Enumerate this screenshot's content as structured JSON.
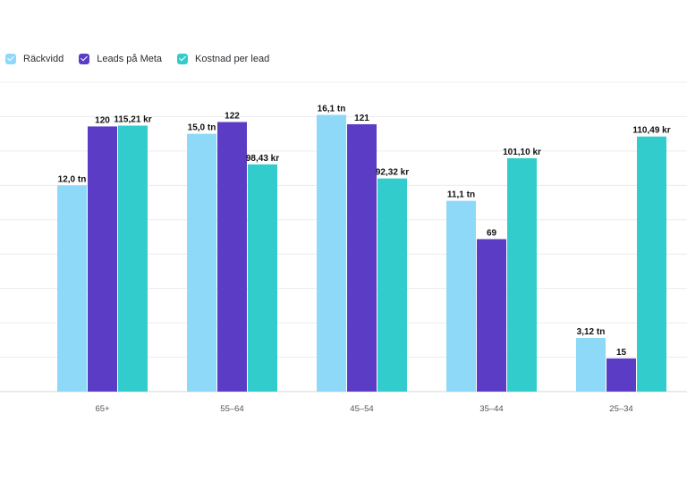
{
  "colors": {
    "series": [
      "#8ed8f8",
      "#5b3cc4",
      "#33cccc"
    ],
    "grid": "#ececec",
    "baseline": "#d4d4d4"
  },
  "legend": {
    "items": [
      "Räckvidd",
      "Leads på Meta",
      "Kostnad per lead"
    ]
  },
  "chart_data": {
    "type": "bar",
    "categories": [
      "65+",
      "55–64",
      "45–54",
      "35–44",
      "25–34"
    ],
    "legend_position": "top-left",
    "grid": true,
    "series": [
      {
        "name": "Räckvidd",
        "scale_max": 18.0,
        "values": [
          12.0,
          15.0,
          16.1,
          11.1,
          3.12
        ],
        "labels": [
          "12,0 tn",
          "15,0 tn",
          "16,1 tn",
          "11,1 tn",
          "3,12 tn"
        ]
      },
      {
        "name": "Leads på Meta",
        "scale_max": 140,
        "values": [
          120,
          122,
          121,
          69,
          15
        ],
        "labels": [
          "120",
          "122",
          "121",
          "69",
          "15"
        ]
      },
      {
        "name": "Kostnad per lead",
        "scale_max": 134,
        "values": [
          115.21,
          98.43,
          92.32,
          101.1,
          110.49
        ],
        "labels": [
          "115,21 kr",
          "98,43 kr",
          "92,32 kr",
          "101,10 kr",
          "110,49 kr"
        ]
      }
    ]
  }
}
